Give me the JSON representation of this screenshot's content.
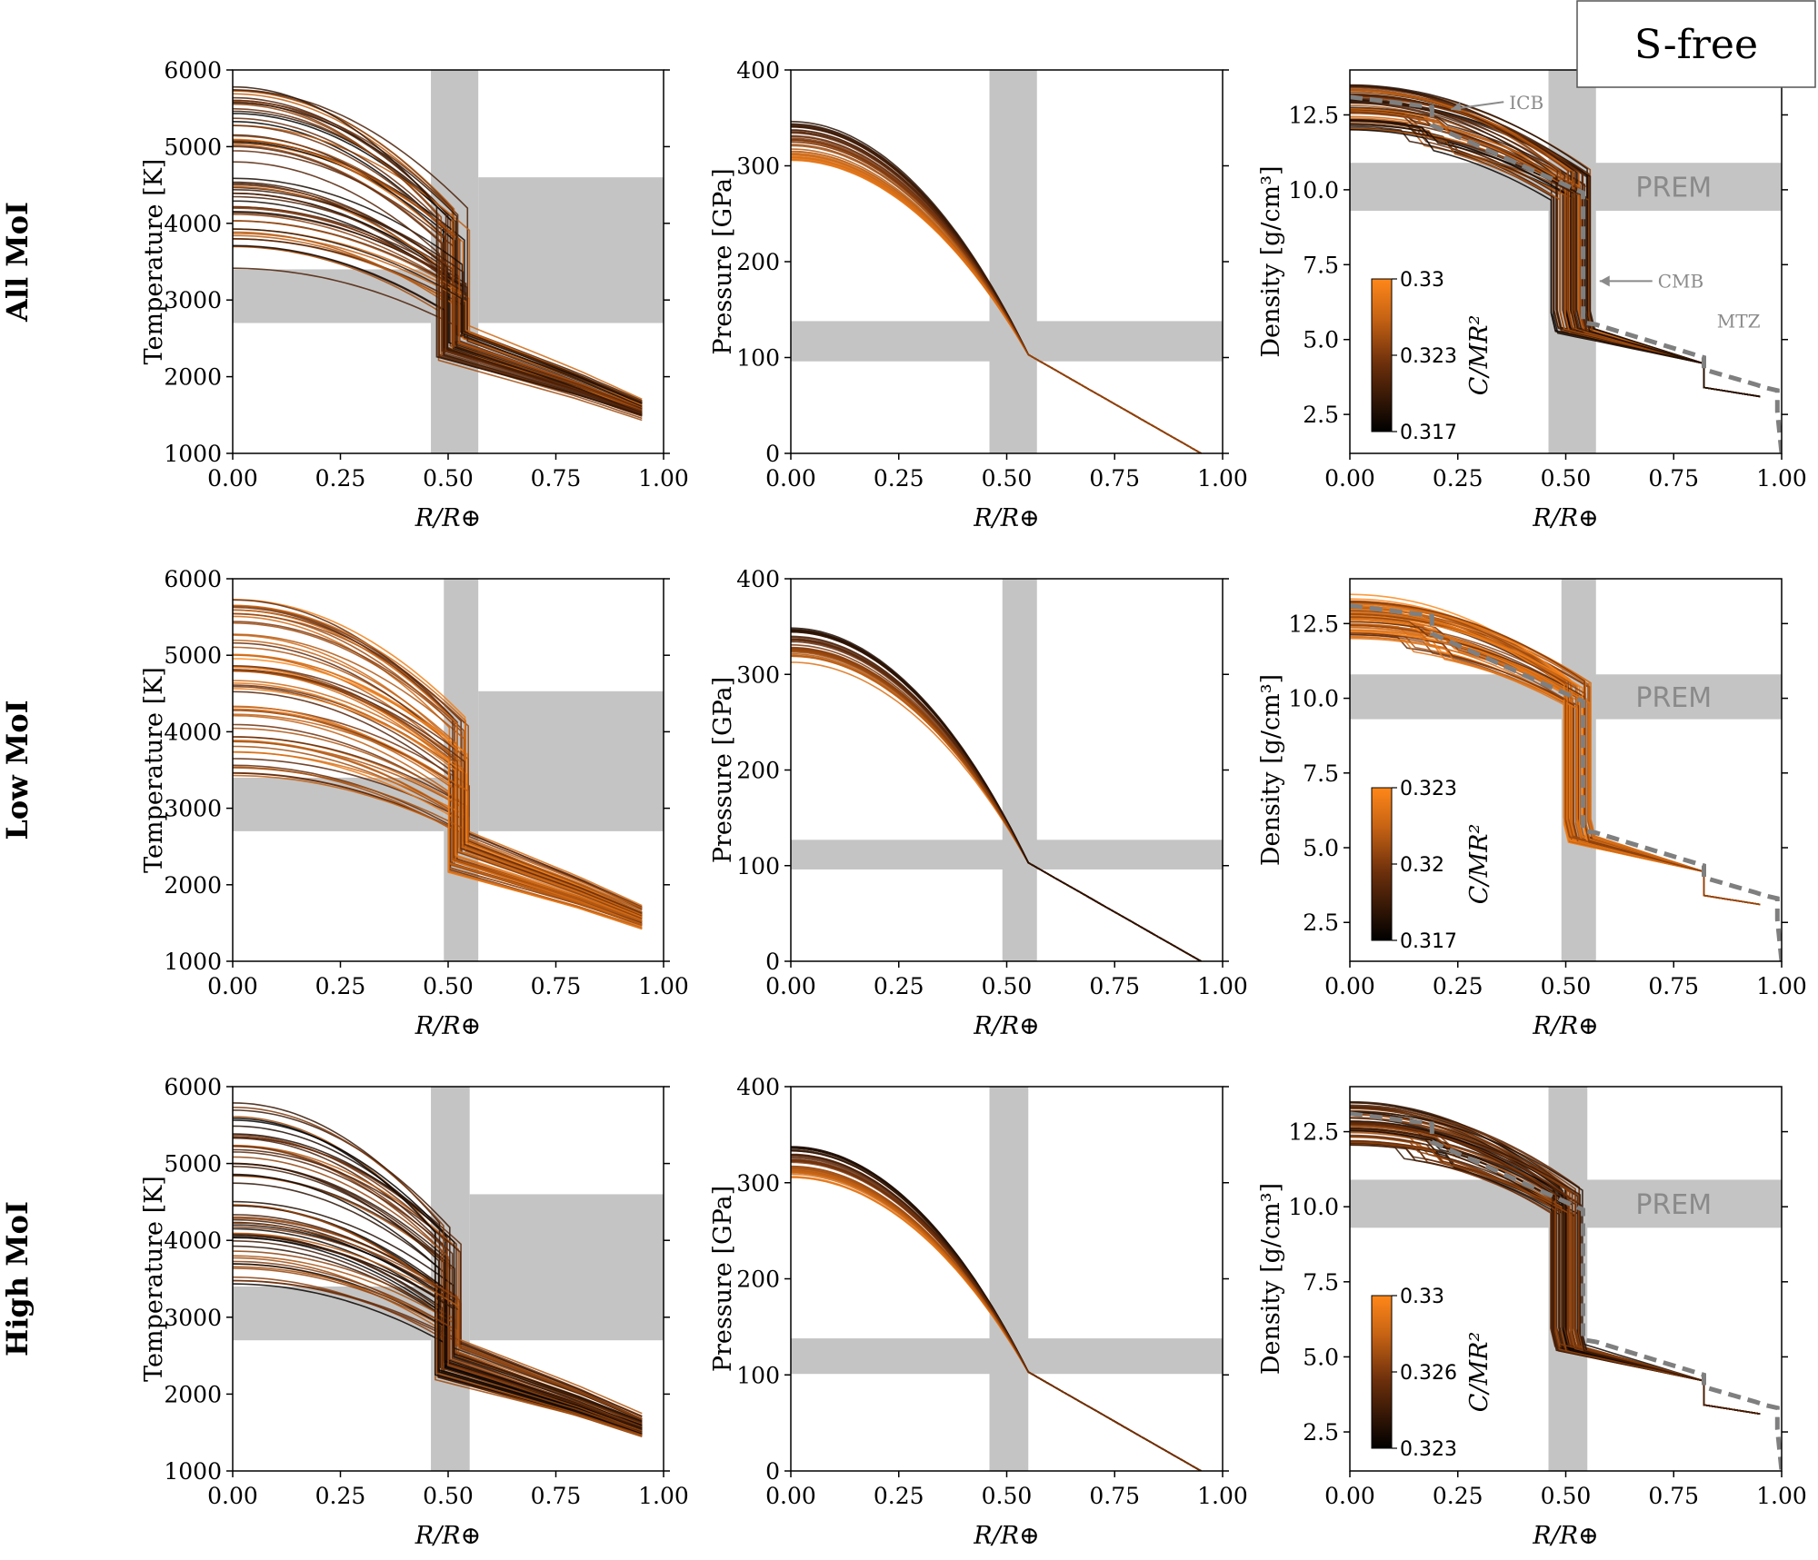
{
  "legend": {
    "label": "S-free"
  },
  "chart_data": {
    "type": "line",
    "rows": [
      {
        "row_label": "All MoI",
        "colorbar": {
          "label": "C/MR²",
          "min": "0.317",
          "mid": "0.323",
          "max": "0.33"
        }
      },
      {
        "row_label": "Low MoI",
        "colorbar": {
          "label": "C/MR²",
          "min": "0.317",
          "mid": "0.32",
          "max": "0.323"
        }
      },
      {
        "row_label": "High MoI",
        "colorbar": {
          "label": "C/MR²",
          "min": "0.323",
          "mid": "0.326",
          "max": "0.33"
        }
      }
    ],
    "columns": [
      {
        "ylabel": "Temperature [K]",
        "xlabel": "R/R⊕",
        "xlim": [
          0,
          1
        ],
        "ylim": [
          1000,
          6000
        ],
        "xticks": [
          "0.00",
          "0.25",
          "0.50",
          "0.75",
          "1.00"
        ],
        "yticks": [
          "1000",
          "2000",
          "3000",
          "4000",
          "5000",
          "6000"
        ]
      },
      {
        "ylabel": "Pressure [GPa]",
        "xlabel": "R/R⊕",
        "xlim": [
          0,
          1
        ],
        "ylim": [
          0,
          400
        ],
        "xticks": [
          "0.00",
          "0.25",
          "0.50",
          "0.75",
          "1.00"
        ],
        "yticks": [
          "0",
          "100",
          "200",
          "300",
          "400"
        ]
      },
      {
        "ylabel": "Density [g/cm³]",
        "xlabel": "R/R⊕",
        "xlim": [
          0,
          1
        ],
        "ylim": [
          1.2,
          14
        ],
        "xticks": [
          "0.00",
          "0.25",
          "0.50",
          "0.75",
          "1.00"
        ],
        "yticks": [
          "2.5",
          "5.0",
          "7.5",
          "10.0",
          "12.5"
        ]
      }
    ],
    "bands": {
      "cmb_x": [
        [
          0.46,
          0.57
        ],
        [
          0.49,
          0.57
        ],
        [
          0.46,
          0.55
        ]
      ],
      "temperature_y": [
        [
          2700,
          4600
        ],
        [
          2700,
          4530
        ],
        [
          2700,
          4600
        ]
      ],
      "pressure_y": [
        [
          96,
          138
        ],
        [
          96,
          127
        ],
        [
          101,
          138
        ]
      ],
      "density_y": [
        [
          9.3,
          10.9
        ],
        [
          9.3,
          10.8
        ],
        [
          9.3,
          10.9
        ]
      ]
    },
    "temperature_profiles": {
      "T0_range": [
        3380,
        5800
      ],
      "T_cmb_range": [
        2150,
        2750
      ],
      "T_surface_range": [
        1430,
        1800
      ],
      "x_end": 0.95
    },
    "pressure_profiles": {
      "P0_range": [
        [
          305,
          350
        ],
        [
          310,
          350
        ],
        [
          305,
          338
        ]
      ],
      "P_at_0_55": 103,
      "x_end": 0.95
    },
    "density_profiles": {
      "core_center_range": [
        12.0,
        13.5
      ],
      "core_top_range": [
        10.0,
        10.7
      ],
      "mantle_base": 5.3,
      "mantle_top": 4.2,
      "upper_mantle": [
        3.4,
        3.1
      ]
    },
    "prem_label": "PREM",
    "prem_profile": {
      "x": [
        0,
        0.19,
        0.19,
        0.54,
        0.54,
        0.57,
        0.82,
        0.82,
        0.94,
        0.96,
        0.99,
        0.99,
        1.0
      ],
      "y": [
        13.1,
        12.76,
        12.16,
        9.9,
        5.57,
        5.5,
        4.4,
        4.0,
        3.5,
        3.4,
        3.3,
        2.6,
        1.2
      ]
    },
    "annotations": [
      "ICB",
      "CMB",
      "MTZ"
    ]
  }
}
